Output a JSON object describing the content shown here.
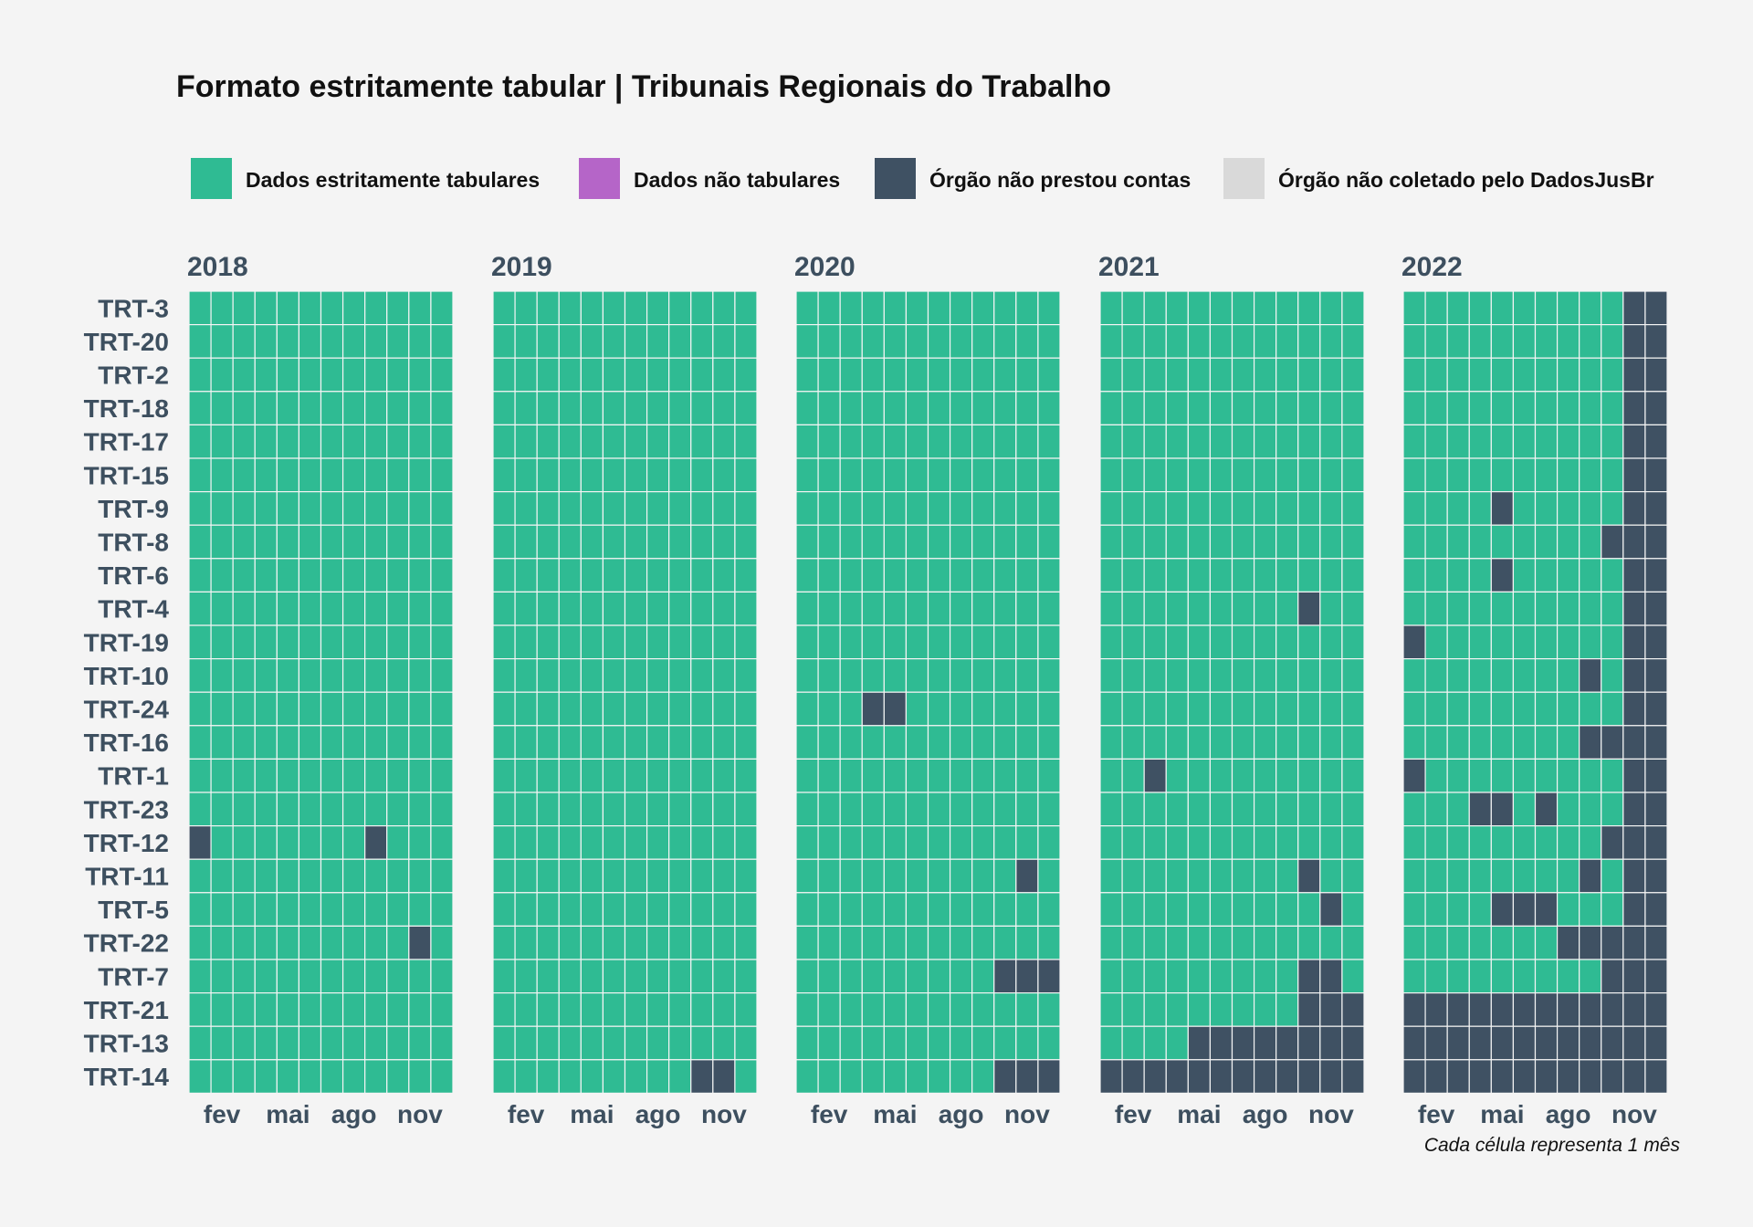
{
  "chart_data": {
    "type": "heatmap",
    "title": "Formato estritamente tabular | Tribunais Regionais do Trabalho",
    "caption": "Cada célula representa 1 mês",
    "legend": {
      "placement": "top",
      "items": [
        {
          "key": "T",
          "label": "Dados estritamente tabulares",
          "color": "#2fbb93"
        },
        {
          "key": "N",
          "label": "Dados não tabulares",
          "color": "#b565c8"
        },
        {
          "key": "X",
          "label": "Órgão não prestou contas",
          "color": "#3f5163"
        },
        {
          "key": "C",
          "label": "Órgão não coletado pelo DadosJusBr",
          "color": "#d9d9d9"
        }
      ]
    },
    "years": [
      "2018",
      "2019",
      "2020",
      "2021",
      "2022"
    ],
    "month_ticks": [
      {
        "month": 2,
        "label": "fev"
      },
      {
        "month": 5,
        "label": "mai"
      },
      {
        "month": 8,
        "label": "ago"
      },
      {
        "month": 11,
        "label": "nov"
      }
    ],
    "rows": [
      "TRT-3",
      "TRT-20",
      "TRT-2",
      "TRT-18",
      "TRT-17",
      "TRT-15",
      "TRT-9",
      "TRT-8",
      "TRT-6",
      "TRT-4",
      "TRT-19",
      "TRT-10",
      "TRT-24",
      "TRT-16",
      "TRT-1",
      "TRT-23",
      "TRT-12",
      "TRT-11",
      "TRT-5",
      "TRT-22",
      "TRT-7",
      "TRT-21",
      "TRT-13",
      "TRT-14"
    ],
    "grid": {
      "2018": {
        "TRT-12": "XTTTTTTTXTTT",
        "TRT-22": "TTTTTTTTTTXT"
      },
      "2019": {
        "TRT-14": "TTTTTTTTTXXT"
      },
      "2020": {
        "TRT-24": "TTTXXTTTTTTT",
        "TRT-11": "TTTTTTTTTTXT",
        "TRT-7": "TTTTTTTTTXXX",
        "TRT-14": "TTTTTTTTTXXX"
      },
      "2021": {
        "TRT-4": "TTTTTTTTTXTT",
        "TRT-1": "TTXTTTTTTTTT",
        "TRT-11": "TTTTTTTTTXTT",
        "TRT-5": "TTTTTTTTTTXT",
        "TRT-7": "TTTTTTTTTXXT",
        "TRT-21": "TTTTTTTTTXXX",
        "TRT-13": "TTTTXXXXXXXX",
        "TRT-14": "XXXXXXXXXXXX"
      },
      "2022": {
        "TRT-3": "TTTTTTTTTTXX",
        "TRT-20": "TTTTTTTTTTXX",
        "TRT-2": "TTTTTTTTTTXX",
        "TRT-18": "TTTTTTTTTTXX",
        "TRT-17": "TTTTTTTTTTXX",
        "TRT-15": "TTTTTTTTTTXX",
        "TRT-9": "TTTTXTTTTTXX",
        "TRT-8": "TTTTTTTTTXXX",
        "TRT-6": "TTTTXTTTTTXX",
        "TRT-4": "TTTTTTTTTTXX",
        "TRT-19": "XTTTTTTTTTXX",
        "TRT-10": "TTTTTTTTXTXX",
        "TRT-24": "TTTTTTTTTTXX",
        "TRT-16": "TTTTTTTTXXXX",
        "TRT-1": "XTTTTTTTTTXX",
        "TRT-23": "TTTXXTXTTTXX",
        "TRT-12": "TTTTTTTTTXXX",
        "TRT-11": "TTTTTTTTXTXX",
        "TRT-5": "TTTTXXXTTTXX",
        "TRT-22": "TTTTTTTXXXXX",
        "TRT-7": "TTTTTTTTTXXX",
        "TRT-21": "XXXXXXXXXXXX",
        "TRT-13": "XXXXXXXXXXXX",
        "TRT-14": "XXXXXXXXXXXX"
      }
    },
    "default_value": "T",
    "grid_lines": true
  }
}
